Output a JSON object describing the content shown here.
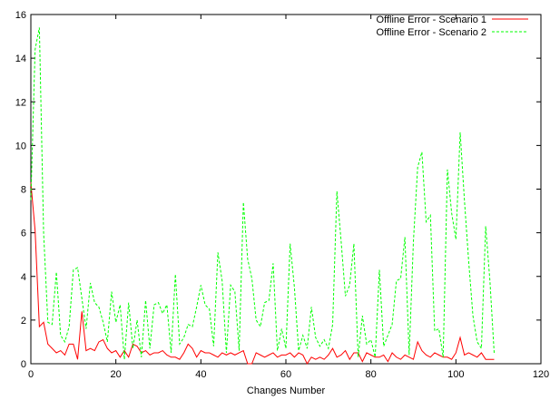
{
  "chart_data": {
    "type": "line",
    "xlabel": "Changes Number",
    "ylabel": "",
    "title": "",
    "xlim": [
      0,
      120
    ],
    "ylim": [
      0,
      16
    ],
    "xticks": [
      0,
      20,
      40,
      60,
      80,
      100,
      120
    ],
    "yticks": [
      0,
      2,
      4,
      6,
      8,
      10,
      12,
      14,
      16
    ],
    "grid": false,
    "legend_position": "top-right",
    "series": [
      {
        "name": "Offline Error - Scenario 1",
        "color": "#ff0000",
        "dash": "solid",
        "x": [
          0,
          1,
          2,
          3,
          4,
          5,
          6,
          7,
          8,
          9,
          10,
          11,
          12,
          13,
          14,
          15,
          16,
          17,
          18,
          19,
          20,
          21,
          22,
          23,
          24,
          25,
          26,
          27,
          28,
          29,
          30,
          31,
          32,
          33,
          34,
          35,
          36,
          37,
          38,
          39,
          40,
          41,
          42,
          43,
          44,
          45,
          46,
          47,
          48,
          49,
          50,
          51,
          52,
          53,
          54,
          55,
          56,
          57,
          58,
          59,
          60,
          61,
          62,
          63,
          64,
          65,
          66,
          67,
          68,
          69,
          70,
          71,
          72,
          73,
          74,
          75,
          76,
          77,
          78,
          79,
          80,
          81,
          82,
          83,
          84,
          85,
          86,
          87,
          88,
          89,
          90,
          91,
          92,
          93,
          94,
          95,
          96,
          97,
          98,
          99,
          100,
          101,
          102,
          103,
          104,
          105,
          106,
          107,
          108,
          109
        ],
        "y": [
          8.3,
          6.1,
          1.7,
          1.9,
          0.9,
          0.7,
          0.5,
          0.6,
          0.4,
          0.9,
          0.9,
          0.2,
          2.4,
          0.6,
          0.7,
          0.6,
          1.0,
          1.1,
          0.7,
          0.5,
          0.6,
          0.3,
          0.6,
          0.3,
          0.9,
          0.8,
          0.5,
          0.6,
          0.4,
          0.5,
          0.5,
          0.6,
          0.4,
          0.3,
          0.3,
          0.2,
          0.5,
          0.9,
          0.7,
          0.3,
          0.6,
          0.5,
          0.5,
          0.4,
          0.3,
          0.5,
          0.4,
          0.5,
          0.4,
          0.5,
          0.6,
          0.0,
          0.0,
          0.5,
          0.4,
          0.3,
          0.4,
          0.5,
          0.3,
          0.4,
          0.4,
          0.5,
          0.3,
          0.5,
          0.4,
          0.0,
          0.3,
          0.2,
          0.3,
          0.2,
          0.4,
          0.7,
          0.3,
          0.4,
          0.6,
          0.2,
          0.5,
          0.5,
          0.1,
          0.5,
          0.4,
          0.3,
          0.3,
          0.4,
          0.1,
          0.5,
          0.3,
          0.2,
          0.4,
          0.3,
          0.2,
          1.0,
          0.6,
          0.4,
          0.3,
          0.5,
          0.4,
          0.3,
          0.3,
          0.2,
          0.5,
          1.2,
          0.4,
          0.5,
          0.4,
          0.3,
          0.5,
          0.2,
          0.2,
          0.2
        ]
      },
      {
        "name": "Offline Error - Scenario 2",
        "color": "#00ff00",
        "dash": "dashed",
        "x": [
          0,
          1,
          2,
          3,
          4,
          5,
          6,
          7,
          8,
          9,
          10,
          11,
          12,
          13,
          14,
          15,
          16,
          17,
          18,
          19,
          20,
          21,
          22,
          23,
          24,
          25,
          26,
          27,
          28,
          29,
          30,
          31,
          32,
          33,
          34,
          35,
          36,
          37,
          38,
          39,
          40,
          41,
          42,
          43,
          44,
          45,
          46,
          47,
          48,
          49,
          50,
          51,
          52,
          53,
          54,
          55,
          56,
          57,
          58,
          59,
          60,
          61,
          62,
          63,
          64,
          65,
          66,
          67,
          68,
          69,
          70,
          71,
          72,
          73,
          74,
          75,
          76,
          77,
          78,
          79,
          80,
          81,
          82,
          83,
          84,
          85,
          86,
          87,
          88,
          89,
          90,
          91,
          92,
          93,
          94,
          95,
          96,
          97,
          98,
          99,
          100,
          101,
          102,
          103,
          104,
          105,
          106,
          107,
          108,
          109
        ],
        "y": [
          7.5,
          14.4,
          15.4,
          6.0,
          1.9,
          1.8,
          4.2,
          1.3,
          1.0,
          1.7,
          4.3,
          4.4,
          3.0,
          1.6,
          3.7,
          2.8,
          2.6,
          1.9,
          1.0,
          3.3,
          1.9,
          2.7,
          0.2,
          2.8,
          0.7,
          2.0,
          0.3,
          2.9,
          0.7,
          2.7,
          2.8,
          2.3,
          2.7,
          0.5,
          4.1,
          0.9,
          1.2,
          1.8,
          1.7,
          2.6,
          3.6,
          2.7,
          2.5,
          0.8,
          5.1,
          3.8,
          0.5,
          3.6,
          3.3,
          0.6,
          7.4,
          4.8,
          3.9,
          2.0,
          1.7,
          2.8,
          2.9,
          4.6,
          0.6,
          1.6,
          0.7,
          5.5,
          3.5,
          0.6,
          1.3,
          0.7,
          2.6,
          1.2,
          0.8,
          1.1,
          0.7,
          1.8,
          7.9,
          5.6,
          3.1,
          3.6,
          5.5,
          0.3,
          2.2,
          0.9,
          1.1,
          0.3,
          4.3,
          0.8,
          1.3,
          1.8,
          3.8,
          3.9,
          5.8,
          0.4,
          5.6,
          9.0,
          9.7,
          6.5,
          6.8,
          1.5,
          1.6,
          0.3,
          8.9,
          6.9,
          5.7,
          10.6,
          7.5,
          4.7,
          2.2,
          1.0,
          0.7,
          6.3,
          3.8,
          0.5
        ]
      }
    ]
  }
}
